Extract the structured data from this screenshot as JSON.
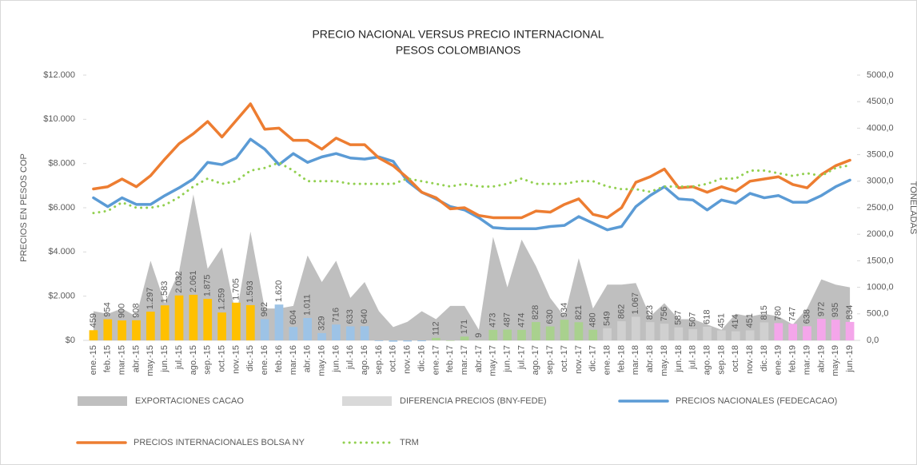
{
  "chart_data": {
    "type": "combo",
    "title": "PRECIO NACIONAL VERSUS PRECIO INTERNACIONAL",
    "subtitle": "PESOS COLOMBIANOS",
    "y_label": "PRECIOS EN PESOS COP",
    "y2_label": "TONELADAS",
    "categories": [
      "ene.-15",
      "feb.-15",
      "mar.-15",
      "abr.-15",
      "may.-15",
      "jun.-15",
      "jul.-15",
      "ago.-15",
      "sep.-15",
      "oct.-15",
      "nov.-15",
      "dic.-15",
      "ene.-16",
      "feb.-16",
      "mar.-16",
      "abr.-16",
      "may.-16",
      "jun.-16",
      "jul.-16",
      "ago.-16",
      "sep.-16",
      "oct.-16",
      "nov.-16",
      "dic.-16",
      "ene.-17",
      "feb.-17",
      "mar.-17",
      "abr.-17",
      "may.-17",
      "jun.-17",
      "jul.-17",
      "ago.-17",
      "sep.-17",
      "oct.-17",
      "nov.-17",
      "dic.-17",
      "ene.-18",
      "feb.-18",
      "mar.-18",
      "abr.-18",
      "may.-18",
      "jun.-18",
      "jul.-18",
      "ago.-18",
      "sep.-18",
      "oct.-18",
      "nov.-18",
      "dic.-18",
      "ene.-19",
      "feb.-19",
      "mar.-19",
      "abr.-19",
      "may.-19",
      "jun.-19"
    ],
    "ylim": [
      0,
      12000
    ],
    "yticks": [
      {
        "value": 0,
        "label": "$0"
      },
      {
        "value": 2000,
        "label": "$2.000"
      },
      {
        "value": 4000,
        "label": "$4.000"
      },
      {
        "value": 6000,
        "label": "$6.000"
      },
      {
        "value": 8000,
        "label": "$8.000"
      },
      {
        "value": 10000,
        "label": "$10.000"
      },
      {
        "value": 12000,
        "label": "$12.000"
      }
    ],
    "y2lim": [
      0,
      5000
    ],
    "y2ticks": [
      {
        "value": 0,
        "label": "0,0"
      },
      {
        "value": 500,
        "label": "500,0"
      },
      {
        "value": 1000,
        "label": "1000,0"
      },
      {
        "value": 1500,
        "label": "1500,0"
      },
      {
        "value": 2000,
        "label": "2000,0"
      },
      {
        "value": 2500,
        "label": "2500,0"
      },
      {
        "value": 3000,
        "label": "3000,0"
      },
      {
        "value": 3500,
        "label": "3500,0"
      },
      {
        "value": 4000,
        "label": "4000,0"
      },
      {
        "value": 4500,
        "label": "4500,0"
      },
      {
        "value": 5000,
        "label": "5000,0"
      }
    ],
    "series": [
      {
        "name": "EXPORTACIONES CACAO",
        "kind": "area",
        "axis": "y2",
        "color": "#bfbfbf",
        "values": [
          550,
          500,
          600,
          450,
          1500,
          700,
          1300,
          2750,
          1350,
          1750,
          450,
          2050,
          600,
          600,
          650,
          1600,
          1100,
          1500,
          800,
          1100,
          550,
          250,
          350,
          550,
          400,
          650,
          650,
          200,
          1950,
          1000,
          1900,
          1400,
          800,
          450,
          1550,
          600,
          1050,
          1050,
          1080,
          450,
          700,
          400,
          400,
          300,
          200,
          500,
          450,
          500,
          450,
          300,
          600,
          1150,
          1050,
          1000
        ]
      },
      {
        "name": "DIFERENCIA PRECIOS (BNY-FEDE)",
        "kind": "bar",
        "color": "#d9d9d9",
        "values": [
          459,
          954,
          900,
          908,
          1297,
          1583,
          2032,
          2061,
          1875,
          1259,
          1705,
          1593,
          962,
          1620,
          604,
          1011,
          329,
          716,
          633,
          640,
          -30,
          -60,
          -50,
          -40,
          112,
          -20,
          171,
          9,
          473,
          487,
          474,
          828,
          630,
          934,
          821,
          480,
          549,
          862,
          1067,
          823,
          756,
          587,
          507,
          618,
          451,
          414,
          451,
          815,
          780,
          747,
          638,
          972,
          935,
          834
        ],
        "value_labels": [
          "459",
          "954",
          "900",
          "908",
          "1.297",
          "1.583",
          "2.032",
          "2.061",
          "1.875",
          "1.259",
          "1.705",
          "1.593",
          "962",
          "1.620",
          "604",
          "1.011",
          "329",
          "716",
          "633",
          "640",
          null,
          null,
          null,
          null,
          "112",
          null,
          "171",
          "9",
          "473",
          "487",
          "474",
          "828",
          "630",
          "934",
          "821",
          "480",
          "549",
          "862",
          "1.067",
          "823",
          "756",
          "587",
          "507",
          "618",
          "451",
          "414",
          "451",
          "815",
          "780",
          "747",
          "638",
          "972",
          "935",
          "834"
        ],
        "colors": [
          "#ffc000",
          "#ffc000",
          "#ffc000",
          "#ffc000",
          "#ffc000",
          "#ffc000",
          "#ffc000",
          "#ffc000",
          "#ffc000",
          "#ffc000",
          "#ffc000",
          "#ffc000",
          "#9dc3e6",
          "#9dc3e6",
          "#9dc3e6",
          "#9dc3e6",
          "#9dc3e6",
          "#9dc3e6",
          "#9dc3e6",
          "#9dc3e6",
          "#9dc3e6",
          "#9dc3e6",
          "#9dc3e6",
          "#9dc3e6",
          "#a9d18e",
          "#a9d18e",
          "#a9d18e",
          "#a9d18e",
          "#a9d18e",
          "#a9d18e",
          "#a9d18e",
          "#a9d18e",
          "#a9d18e",
          "#a9d18e",
          "#a9d18e",
          "#a9d18e",
          "#d0d0d0",
          "#d0d0d0",
          "#d0d0d0",
          "#d0d0d0",
          "#d0d0d0",
          "#d0d0d0",
          "#d0d0d0",
          "#d0d0d0",
          "#d0d0d0",
          "#d0d0d0",
          "#d0d0d0",
          "#d0d0d0",
          "#f4a6ea",
          "#f4a6ea",
          "#f4a6ea",
          "#f4a6ea",
          "#f4a6ea",
          "#f4a6ea"
        ]
      },
      {
        "name": "PRECIOS NACIONALES (FEDECACAO)",
        "kind": "line",
        "color": "#5b9bd5",
        "values": [
          6450,
          6050,
          6450,
          6150,
          6150,
          6550,
          6900,
          7300,
          8050,
          7950,
          8250,
          9100,
          8650,
          7950,
          8450,
          8050,
          8300,
          8450,
          8250,
          8200,
          8300,
          8100,
          7200,
          6700,
          6400,
          6050,
          5900,
          5550,
          5100,
          5050,
          5050,
          5050,
          5150,
          5200,
          5600,
          5300,
          5000,
          5150,
          6050,
          6550,
          6950,
          6400,
          6350,
          5900,
          6350,
          6200,
          6650,
          6450,
          6550,
          6250,
          6250,
          6550,
          6950,
          7250
        ]
      },
      {
        "name": "PRECIOS INTERNACIONALES BOLSA NY",
        "kind": "line",
        "color": "#ed7d31",
        "values": [
          6850,
          6950,
          7300,
          6950,
          7450,
          8200,
          8900,
          9350,
          9900,
          9200,
          9950,
          10700,
          9550,
          9600,
          9050,
          9050,
          8650,
          9150,
          8850,
          8850,
          8250,
          7900,
          7350,
          6700,
          6450,
          5950,
          6000,
          5650,
          5550,
          5550,
          5550,
          5850,
          5800,
          6150,
          6400,
          5700,
          5550,
          6000,
          7150,
          7400,
          7750,
          6900,
          6950,
          6700,
          6950,
          6750,
          7200,
          7300,
          7400,
          7050,
          6900,
          7500,
          7900,
          8150
        ]
      },
      {
        "name": "TRM",
        "kind": "line",
        "axis": "y2",
        "dashed": true,
        "color": "#92d050",
        "values": [
          2400,
          2440,
          2600,
          2500,
          2500,
          2550,
          2700,
          2900,
          3050,
          2950,
          3000,
          3200,
          3250,
          3350,
          3200,
          3000,
          3000,
          3000,
          2950,
          2950,
          2950,
          2950,
          3050,
          3000,
          2950,
          2900,
          2950,
          2900,
          2900,
          2950,
          3050,
          2950,
          2950,
          2950,
          3000,
          3000,
          2900,
          2850,
          2850,
          2800,
          2900,
          2900,
          2900,
          2950,
          3050,
          3050,
          3200,
          3200,
          3150,
          3100,
          3150,
          3100,
          3250,
          3300
        ]
      }
    ]
  }
}
